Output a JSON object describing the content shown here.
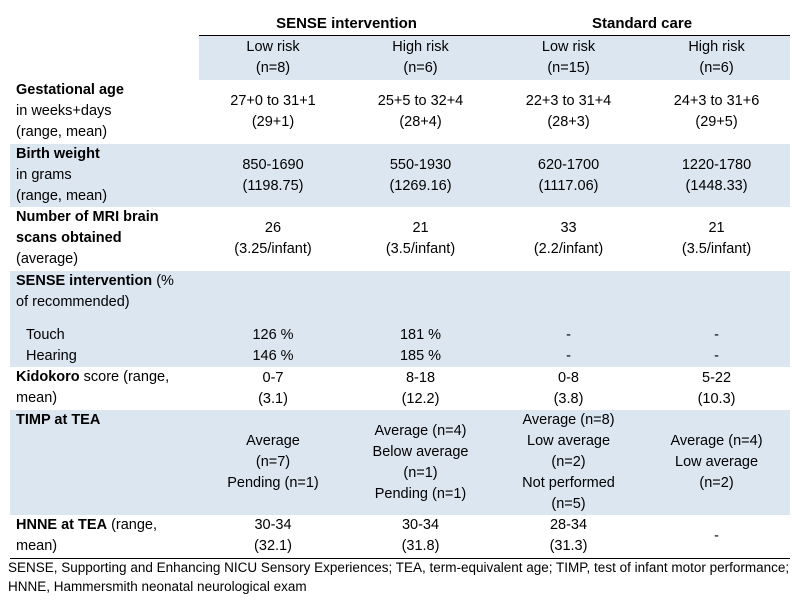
{
  "header": {
    "group1": "SENSE intervention",
    "group2": "Standard care",
    "subheaders": [
      {
        "label": "Low risk",
        "n": "(n=8)"
      },
      {
        "label": "High risk",
        "n": "(n=6)"
      },
      {
        "label": "Low risk",
        "n": "(n=15)"
      },
      {
        "label": "High risk",
        "n": "(n=6)"
      }
    ]
  },
  "rows": {
    "gest": {
      "bold": "Gestational age",
      "rest1": "in weeks+days",
      "rest2": "(range, mean)",
      "cells": [
        [
          "27+0 to 31+1",
          "(29+1)"
        ],
        [
          "25+5 to 32+4",
          "(28+4)"
        ],
        [
          "22+3 to 31+4",
          "(28+3)"
        ],
        [
          "24+3 to 31+6",
          "(29+5)"
        ]
      ]
    },
    "bw": {
      "bold": "Birth weight",
      "rest1": "in grams",
      "rest2": "(range, mean)",
      "cells": [
        [
          "850-1690",
          "(1198.75)"
        ],
        [
          "550-1930",
          "(1269.16)"
        ],
        [
          "620-1700",
          "(1117.06)"
        ],
        [
          "1220-1780",
          "(1448.33)"
        ]
      ]
    },
    "mri": {
      "bold1": "Number of MRI brain",
      "bold2": "scans obtained",
      "rest": "(average)",
      "cells": [
        [
          "26",
          "(3.25/infant)"
        ],
        [
          "21",
          "(3.5/infant)"
        ],
        [
          "33",
          "(2.2/infant)"
        ],
        [
          "21",
          "(3.5/infant)"
        ]
      ]
    },
    "sense": {
      "bold": "SENSE intervention",
      "rest1": " (%",
      "rest2": "of recommended)"
    },
    "touch": {
      "label": "Touch",
      "cells": [
        "126 %",
        "181 %",
        "-",
        "-"
      ]
    },
    "hearing": {
      "label": "Hearing",
      "cells": [
        "146 %",
        "185 %",
        "-",
        "-"
      ]
    },
    "kidokoro": {
      "bold": "Kidokoro",
      "rest1": " score (range,",
      "rest2": "mean)",
      "cells": [
        [
          "0-7",
          "(3.1)"
        ],
        [
          "8-18",
          "(12.2)"
        ],
        [
          "0-8",
          "(3.8)"
        ],
        [
          "5-22",
          "(10.3)"
        ]
      ]
    },
    "timp": {
      "bold": "TIMP at TEA",
      "cells": [
        [
          "Average",
          "(n=7)",
          "Pending (n=1)"
        ],
        [
          "Average (n=4)",
          "Below average",
          "(n=1)",
          "Pending (n=1)"
        ],
        [
          "Average (n=8)",
          "Low average",
          "(n=2)",
          "Not performed",
          "(n=5)"
        ],
        [
          "Average (n=4)",
          "Low average",
          "(n=2)"
        ]
      ]
    },
    "hnne": {
      "bold": "HNNE at TEA",
      "rest1": " (range,",
      "rest2": "mean)",
      "cells": [
        [
          "30-34",
          "(32.1)"
        ],
        [
          "30-34",
          "(31.8)"
        ],
        [
          "28-34",
          "(31.3)"
        ],
        [
          "-"
        ]
      ]
    }
  },
  "footnote": "SENSE, Supporting and Enhancing NICU Sensory Experiences; TEA, term-equivalent age; TIMP, test of infant motor performance; HNNE, Hammersmith neonatal neurological exam"
}
